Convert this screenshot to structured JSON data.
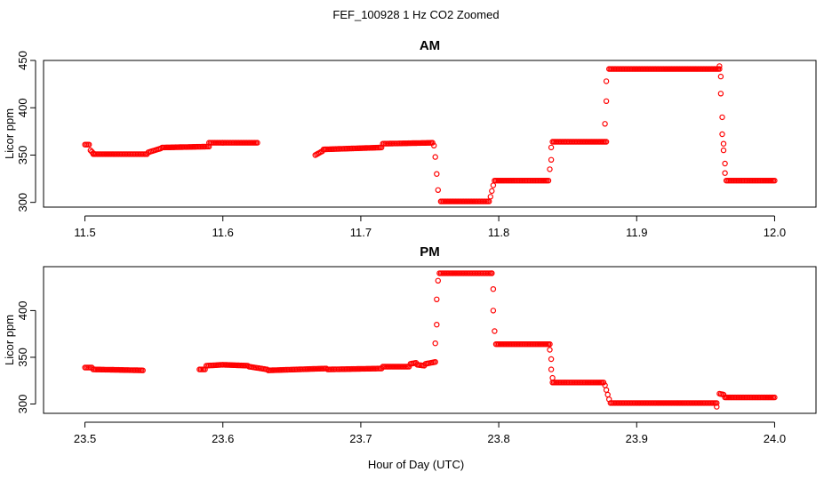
{
  "title": "FEF_100928  1 Hz CO2 Zoomed",
  "xlabel": "Hour of Day (UTC)",
  "colors": {
    "points": "#ff0000",
    "axes": "#000000"
  },
  "chart_data": [
    {
      "type": "scatter",
      "title": "AM",
      "xlabel": "Hour of Day (UTC)",
      "ylabel": "Licor ppm",
      "xlim": [
        11.47,
        12.03
      ],
      "ylim": [
        295,
        450
      ],
      "xticks": [
        "11.5",
        "11.6",
        "11.7",
        "11.8",
        "11.9",
        "12.0"
      ],
      "yticks": [
        "300",
        "350",
        "400",
        "450"
      ],
      "segments": [
        {
          "x": [
            11.5,
            11.503
          ],
          "y": [
            361,
            361
          ]
        },
        {
          "x": [
            11.504,
            11.506
          ],
          "y": [
            355,
            352
          ]
        },
        {
          "x": [
            11.506,
            11.545
          ],
          "y": [
            351,
            351
          ]
        },
        {
          "x": [
            11.546,
            11.555
          ],
          "y": [
            353,
            357
          ]
        },
        {
          "x": [
            11.556,
            11.59
          ],
          "y": [
            358,
            359
          ]
        },
        {
          "x": [
            11.59,
            11.6
          ],
          "y": [
            363,
            363
          ]
        },
        {
          "x": [
            11.6,
            11.625
          ],
          "y": [
            363,
            363
          ]
        },
        {
          "x": [
            11.667,
            11.672
          ],
          "y": [
            350,
            354
          ]
        },
        {
          "x": [
            11.673,
            11.715
          ],
          "y": [
            356,
            358
          ]
        },
        {
          "x": [
            11.716,
            11.752
          ],
          "y": [
            362,
            363
          ]
        },
        {
          "x": [
            11.758,
            11.793
          ],
          "y": [
            301,
            301
          ]
        },
        {
          "x": [
            11.797,
            11.836
          ],
          "y": [
            323,
            323
          ]
        },
        {
          "x": [
            11.839,
            11.878
          ],
          "y": [
            364,
            364
          ]
        },
        {
          "x": [
            11.88,
            11.96
          ],
          "y": [
            441,
            441
          ]
        },
        {
          "x": [
            11.965,
            12.0
          ],
          "y": [
            323,
            323
          ]
        }
      ],
      "points": [
        [
          11.753,
          360
        ],
        [
          11.754,
          348
        ],
        [
          11.755,
          330
        ],
        [
          11.756,
          313
        ],
        [
          11.794,
          306
        ],
        [
          11.795,
          312
        ],
        [
          11.796,
          318
        ],
        [
          11.837,
          335
        ],
        [
          11.838,
          345
        ],
        [
          11.838,
          358
        ],
        [
          11.877,
          383
        ],
        [
          11.878,
          407
        ],
        [
          11.878,
          428
        ],
        [
          11.96,
          444
        ],
        [
          11.961,
          433
        ],
        [
          11.961,
          415
        ],
        [
          11.962,
          390
        ],
        [
          11.962,
          372
        ],
        [
          11.963,
          362
        ],
        [
          11.963,
          355
        ],
        [
          11.964,
          341
        ],
        [
          11.964,
          331
        ]
      ]
    },
    {
      "type": "scatter",
      "title": "PM",
      "xlabel": "Hour of Day (UTC)",
      "ylabel": "Licor ppm",
      "xlim": [
        23.47,
        24.03
      ],
      "ylim": [
        290,
        447
      ],
      "xticks": [
        "23.5",
        "23.6",
        "23.7",
        "23.8",
        "23.9",
        "24.0"
      ],
      "yticks": [
        "300",
        "350",
        "400"
      ],
      "segments": [
        {
          "x": [
            23.5,
            23.505
          ],
          "y": [
            339,
            339
          ]
        },
        {
          "x": [
            23.506,
            23.542
          ],
          "y": [
            337,
            336
          ]
        },
        {
          "x": [
            23.583,
            23.587
          ],
          "y": [
            337,
            337
          ]
        },
        {
          "x": [
            23.588,
            23.6
          ],
          "y": [
            341,
            342
          ]
        },
        {
          "x": [
            23.6,
            23.618
          ],
          "y": [
            342,
            341
          ]
        },
        {
          "x": [
            23.619,
            23.632
          ],
          "y": [
            340,
            337
          ]
        },
        {
          "x": [
            23.633,
            23.675
          ],
          "y": [
            336,
            338
          ]
        },
        {
          "x": [
            23.676,
            23.715
          ],
          "y": [
            337,
            338
          ]
        },
        {
          "x": [
            23.716,
            23.735
          ],
          "y": [
            340,
            340
          ]
        },
        {
          "x": [
            23.736,
            23.74
          ],
          "y": [
            343,
            344
          ]
        },
        {
          "x": [
            23.741,
            23.746
          ],
          "y": [
            342,
            341
          ]
        },
        {
          "x": [
            23.747,
            23.754
          ],
          "y": [
            343,
            345
          ]
        },
        {
          "x": [
            23.757,
            23.795
          ],
          "y": [
            440,
            440
          ]
        },
        {
          "x": [
            23.798,
            23.837
          ],
          "y": [
            364,
            364
          ]
        },
        {
          "x": [
            23.839,
            23.876
          ],
          "y": [
            323,
            323
          ]
        },
        {
          "x": [
            23.881,
            23.958
          ],
          "y": [
            301,
            301
          ]
        },
        {
          "x": [
            23.96,
            23.963
          ],
          "y": [
            311,
            310
          ]
        },
        {
          "x": [
            23.964,
            24.0
          ],
          "y": [
            307,
            307
          ]
        }
      ],
      "points": [
        [
          23.754,
          365
        ],
        [
          23.755,
          385
        ],
        [
          23.755,
          412
        ],
        [
          23.756,
          432
        ],
        [
          23.795,
          440
        ],
        [
          23.796,
          423
        ],
        [
          23.796,
          400
        ],
        [
          23.797,
          378
        ],
        [
          23.837,
          358
        ],
        [
          23.838,
          348
        ],
        [
          23.838,
          337
        ],
        [
          23.839,
          328
        ],
        [
          23.877,
          320
        ],
        [
          23.878,
          315
        ],
        [
          23.879,
          310
        ],
        [
          23.88,
          305
        ],
        [
          23.958,
          297
        ]
      ]
    }
  ]
}
